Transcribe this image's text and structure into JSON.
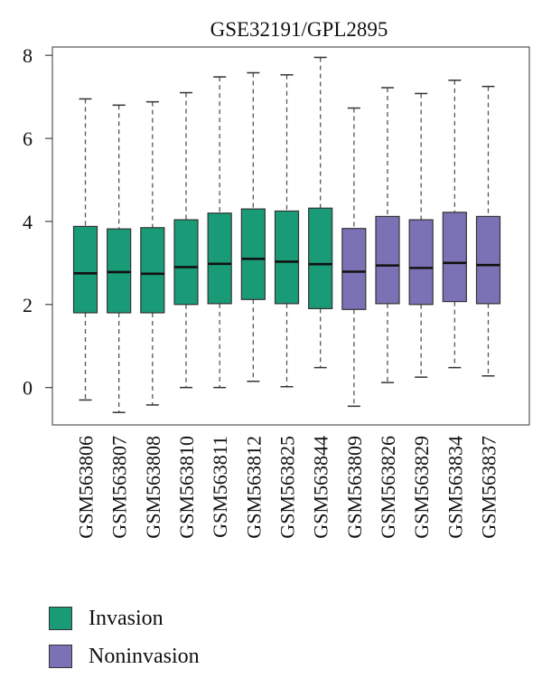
{
  "chart_data": {
    "type": "boxplot",
    "title": "GSE32191/GPL2895",
    "xlabel": "",
    "ylabel": "",
    "ylim": [
      -0.9,
      8.2
    ],
    "yticks": [
      0,
      2,
      4,
      6,
      8
    ],
    "grid": false,
    "categories": [
      "GSM563806",
      "GSM563807",
      "GSM563808",
      "GSM563810",
      "GSM563811",
      "GSM563812",
      "GSM563825",
      "GSM563844",
      "GSM563809",
      "GSM563826",
      "GSM563829",
      "GSM563834",
      "GSM563837"
    ],
    "groups": [
      "Invasion",
      "Invasion",
      "Invasion",
      "Invasion",
      "Invasion",
      "Invasion",
      "Invasion",
      "Invasion",
      "Noninvasion",
      "Noninvasion",
      "Noninvasion",
      "Noninvasion",
      "Noninvasion"
    ],
    "series": [
      {
        "name": "Invasion",
        "color": "#1a9b77"
      },
      {
        "name": "Noninvasion",
        "color": "#7b72b5"
      }
    ],
    "boxes": [
      {
        "min": -0.3,
        "q1": 1.8,
        "median": 2.75,
        "q3": 3.88,
        "max": 6.95
      },
      {
        "min": -0.6,
        "q1": 1.8,
        "median": 2.78,
        "q3": 3.82,
        "max": 6.8
      },
      {
        "min": -0.42,
        "q1": 1.8,
        "median": 2.74,
        "q3": 3.85,
        "max": 6.88
      },
      {
        "min": 0.0,
        "q1": 2.0,
        "median": 2.9,
        "q3": 4.04,
        "max": 7.1
      },
      {
        "min": 0.0,
        "q1": 2.02,
        "median": 2.98,
        "q3": 4.2,
        "max": 7.48
      },
      {
        "min": 0.15,
        "q1": 2.12,
        "median": 3.1,
        "q3": 4.3,
        "max": 7.58
      },
      {
        "min": 0.02,
        "q1": 2.02,
        "median": 3.03,
        "q3": 4.25,
        "max": 7.53
      },
      {
        "min": 0.48,
        "q1": 1.9,
        "median": 2.97,
        "q3": 4.32,
        "max": 7.95
      },
      {
        "min": -0.45,
        "q1": 1.88,
        "median": 2.79,
        "q3": 3.83,
        "max": 6.73
      },
      {
        "min": 0.12,
        "q1": 2.02,
        "median": 2.94,
        "q3": 4.12,
        "max": 7.22
      },
      {
        "min": 0.25,
        "q1": 2.0,
        "median": 2.88,
        "q3": 4.04,
        "max": 7.08
      },
      {
        "min": 0.48,
        "q1": 2.07,
        "median": 3.0,
        "q3": 4.22,
        "max": 7.4
      },
      {
        "min": 0.28,
        "q1": 2.02,
        "median": 2.95,
        "q3": 4.12,
        "max": 7.25
      }
    ],
    "legend": {
      "position": "bottom-left",
      "entries": [
        "Invasion",
        "Noninvasion"
      ]
    }
  }
}
